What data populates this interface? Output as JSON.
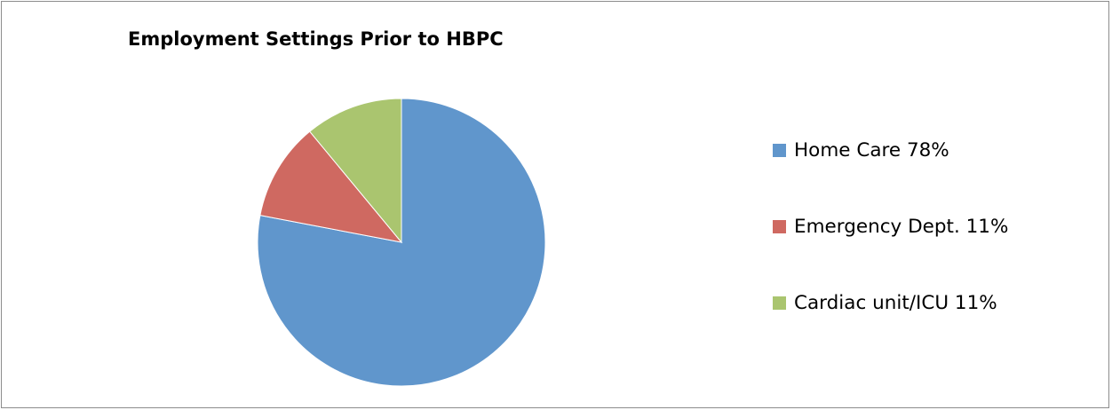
{
  "chart_data": {
    "type": "pie",
    "title": "Employment Settings Prior to HBPC",
    "legend_position": "right",
    "slices": [
      {
        "label": "Home Care 78%",
        "value": 78,
        "color": "#6096cc"
      },
      {
        "label": "Emergency Dept. 11%",
        "value": 11,
        "color": "#cf6961"
      },
      {
        "label": "Cardiac unit/ICU 11%",
        "value": 11,
        "color": "#aac56f"
      }
    ]
  }
}
